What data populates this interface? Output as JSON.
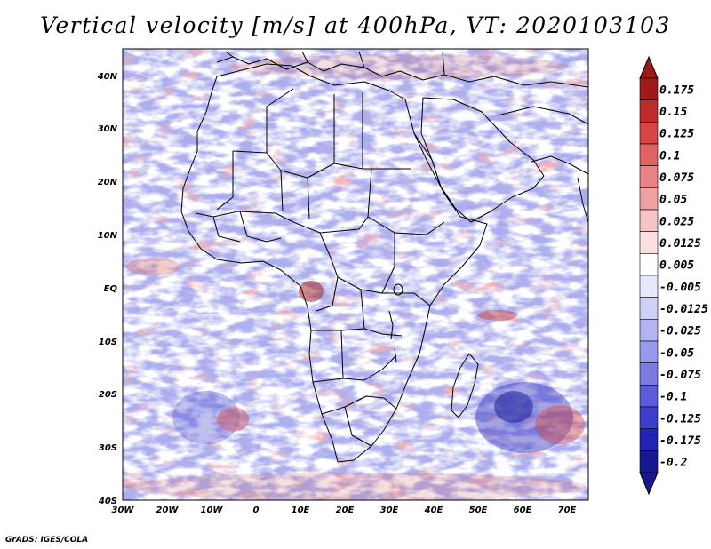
{
  "title": "Vertical velocity [m/s] at 400hPa, VT: 2020103103",
  "credit": "GrADS: IGES/COLA",
  "map": {
    "lat_labels": [
      "40N",
      "30N",
      "20N",
      "10N",
      "EQ",
      "10S",
      "20S",
      "30S",
      "40S"
    ],
    "lon_labels": [
      "30W",
      "20W",
      "10W",
      "0",
      "10E",
      "20E",
      "30E",
      "40E",
      "50E",
      "60E",
      "70E"
    ]
  },
  "colorbar": {
    "levels": [
      {
        "label": "0.175",
        "color": "#9e1a1a"
      },
      {
        "label": "0.15",
        "color": "#bf2b2b"
      },
      {
        "label": "0.125",
        "color": "#d64646"
      },
      {
        "label": "0.1",
        "color": "#e06262"
      },
      {
        "label": "0.075",
        "color": "#e98282"
      },
      {
        "label": "0.05",
        "color": "#f0a2a2"
      },
      {
        "label": "0.025",
        "color": "#f6c4c4"
      },
      {
        "label": "0.0125",
        "color": "#fbe0e0"
      },
      {
        "label": "0.005",
        "color": "#ffffff"
      },
      {
        "label": "-0.005",
        "color": "#e8e8fb"
      },
      {
        "label": "-0.0125",
        "color": "#cfd0f6"
      },
      {
        "label": "-0.025",
        "color": "#b4b5f0"
      },
      {
        "label": "-0.05",
        "color": "#9899ea"
      },
      {
        "label": "-0.075",
        "color": "#7b7be2"
      },
      {
        "label": "-0.1",
        "color": "#5c5cd8"
      },
      {
        "label": "-0.125",
        "color": "#3e3ecc"
      },
      {
        "label": "-0.175",
        "color": "#2424b4"
      },
      {
        "label": "-0.2",
        "color": "#18188e"
      }
    ],
    "top_color": "#9e1a1a",
    "bottom_color": "#18188e"
  }
}
